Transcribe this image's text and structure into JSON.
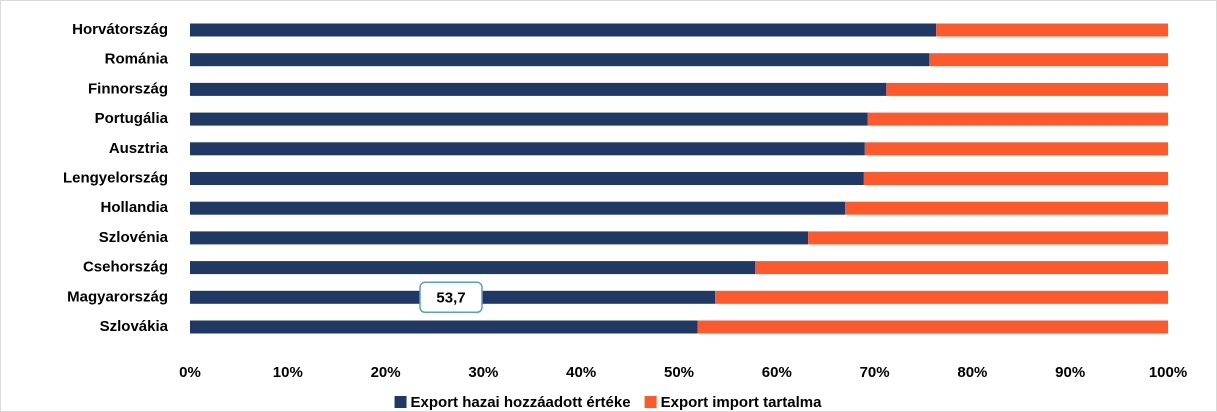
{
  "chart_data": {
    "type": "bar",
    "orientation": "horizontal",
    "stacked": true,
    "categories": [
      "Horvátország",
      "Románia",
      "Finnország",
      "Portugália",
      "Ausztria",
      "Lengyelország",
      "Hollandia",
      "Szlovénia",
      "Csehország",
      "Magyarország",
      "Szlovákia"
    ],
    "series": [
      {
        "name": "Export hazai hozzáadott értéke",
        "color": "#203864",
        "values": [
          76.3,
          75.6,
          71.2,
          69.3,
          69.0,
          68.9,
          67.0,
          63.2,
          57.8,
          53.7,
          51.9
        ],
        "value_labels": [
          null,
          null,
          null,
          null,
          null,
          null,
          null,
          null,
          null,
          "53,7",
          null
        ]
      },
      {
        "name": "Export import tartalma",
        "color": "#fc5a2c",
        "values": [
          23.7,
          24.4,
          28.8,
          30.7,
          31.0,
          31.1,
          33.0,
          36.8,
          42.2,
          46.3,
          48.1
        ]
      }
    ],
    "xlim": [
      0,
      100
    ],
    "xticks": [
      {
        "value": 0,
        "label": "0%"
      },
      {
        "value": 10,
        "label": "10%"
      },
      {
        "value": 20,
        "label": "20%"
      },
      {
        "value": 30,
        "label": "30%"
      },
      {
        "value": 40,
        "label": "40%"
      },
      {
        "value": 50,
        "label": "50%"
      },
      {
        "value": 60,
        "label": "60%"
      },
      {
        "value": 70,
        "label": "70%"
      },
      {
        "value": 80,
        "label": "80%"
      },
      {
        "value": 90,
        "label": "90%"
      },
      {
        "value": 100,
        "label": "100%"
      }
    ],
    "grid": false,
    "legend": "bottom"
  }
}
